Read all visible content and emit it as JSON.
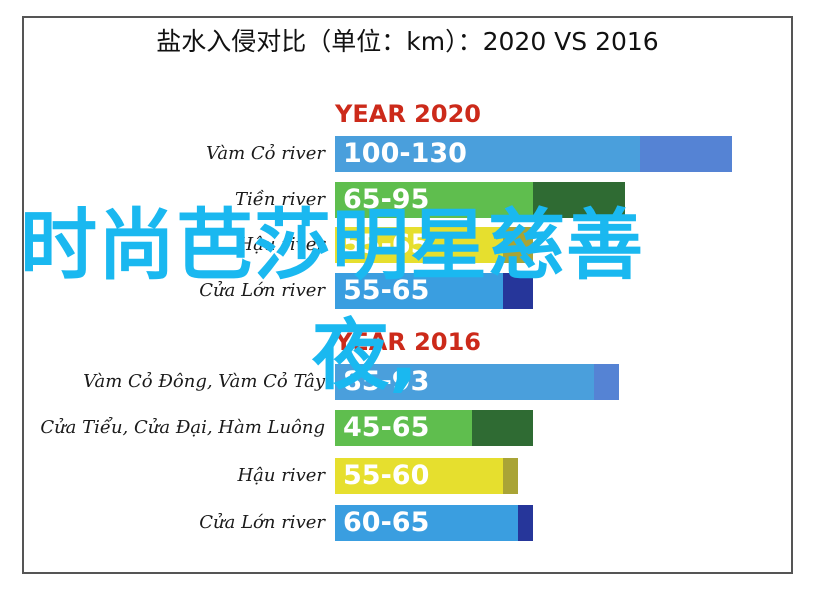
{
  "chart_data": {
    "type": "bar",
    "title": "盐水入侵对比（单位：km）：2020 VS 2016",
    "groups": [
      {
        "label": "YEAR 2020",
        "rows": [
          {
            "name": "Vàm Cỏ river",
            "value_label": "100-130",
            "min": 100,
            "max": 130,
            "color": "#4a9fdc",
            "ext_color": "#5583d4"
          },
          {
            "name": "Tiền river",
            "value_label": "65-95",
            "min": 65,
            "max": 95,
            "color": "#5fbe4e",
            "ext_color": "#2f6b33"
          },
          {
            "name": "Hậu river",
            "value_label": "55-65",
            "min": 55,
            "max": 65,
            "color": "#e6df2e",
            "ext_color": "#a9a436"
          },
          {
            "name": "Cửa Lớn river",
            "value_label": "55-65",
            "min": 55,
            "max": 65,
            "color": "#3a9ee0",
            "ext_color": "#26369a"
          }
        ]
      },
      {
        "label": "YEAR 2016",
        "rows": [
          {
            "name": "Vàm Cỏ Đông, Vàm Cỏ Tây",
            "value_label": "85-93",
            "min": 85,
            "max": 93,
            "color": "#4a9fdc",
            "ext_color": "#5583d4"
          },
          {
            "name": "Cửa Tiểu, Cửa Đại, Hàm Luông",
            "value_label": "45-65",
            "min": 45,
            "max": 65,
            "color": "#5fbe4e",
            "ext_color": "#2f6b33"
          },
          {
            "name": "Hậu river",
            "value_label": "55-60",
            "min": 55,
            "max": 60,
            "color": "#e6df2e",
            "ext_color": "#a9a436"
          },
          {
            "name": "Cửa Lớn river",
            "value_label": "60-65",
            "min": 60,
            "max": 65,
            "color": "#3a9ee0",
            "ext_color": "#26369a"
          }
        ]
      }
    ]
  },
  "overlay": {
    "line1": "时尚芭莎明星慈善",
    "line2": "夜,"
  }
}
